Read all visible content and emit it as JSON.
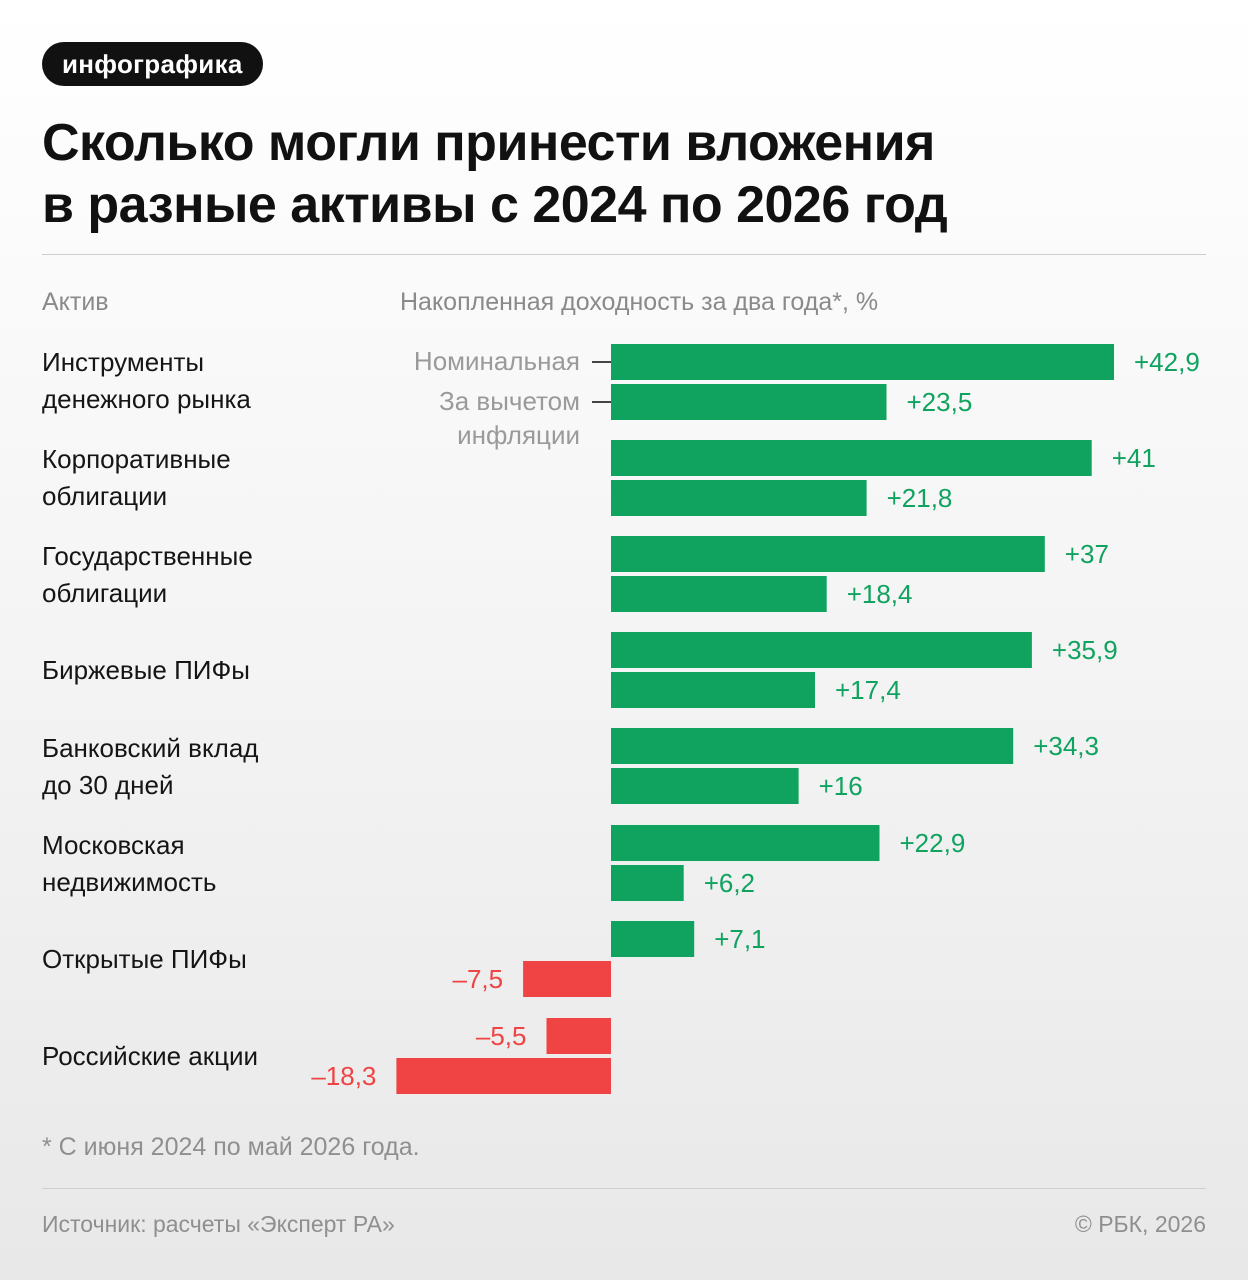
{
  "tag": "инфографика",
  "title": {
    "line1": "Сколько могли принести вложения",
    "line2": "в разные активы с 2024 по 2026 год"
  },
  "columns": {
    "asset": "Актив",
    "yield": "Накопленная доходность за два года*, %"
  },
  "legend": {
    "nominal": "Номинальная",
    "real_line1": "За вычетом",
    "real_line2": "инфляции"
  },
  "categories": [
    {
      "line1": "Инструменты",
      "line2": "денежного рынка"
    },
    {
      "line1": "Корпоративные",
      "line2": "облигации"
    },
    {
      "line1": "Государственные",
      "line2": "облигации"
    },
    {
      "line1": "Биржевые ПИФы",
      "line2": ""
    },
    {
      "line1": "Банковский вклад",
      "line2": "до 30 дней"
    },
    {
      "line1": "Московская",
      "line2": "недвижимость"
    },
    {
      "line1": "Открытые ПИФы",
      "line2": ""
    },
    {
      "line1": "Российские акции",
      "line2": ""
    }
  ],
  "colors": {
    "positive": "#10a35f",
    "negative": "#f04344"
  },
  "chart_data": {
    "type": "bar",
    "orientation": "horizontal",
    "categories": [
      "Инструменты денежного рынка",
      "Корпоративные облигации",
      "Государственные облигации",
      "Биржевые ПИФы",
      "Банковский вклад до 30 дней",
      "Московская недвижимость",
      "Открытые ПИФы",
      "Российские акции"
    ],
    "series": [
      {
        "name": "Номинальная",
        "values": [
          42.9,
          41,
          37,
          35.9,
          34.3,
          22.9,
          7.1,
          -5.5
        ]
      },
      {
        "name": "За вычетом инфляции",
        "values": [
          23.5,
          21.8,
          18.4,
          17.4,
          16,
          6.2,
          -7.5,
          -18.3
        ]
      }
    ],
    "labels": [
      [
        "+42,9",
        "+41",
        "+37",
        "+35,9",
        "+34,3",
        "+22,9",
        "+7,1",
        "–5,5"
      ],
      [
        "+23,5",
        "+21,8",
        "+18,4",
        "+17,4",
        "+16",
        "+6,2",
        "–7,5",
        "–18,3"
      ]
    ],
    "ylabel": "Накопленная доходность за два года*, %",
    "grid": false
  },
  "footnote": "* С июня 2024 по май 2026 года.",
  "source": "Источник: расчеты «Эксперт РА»",
  "copyright": "© РБК, 2026"
}
